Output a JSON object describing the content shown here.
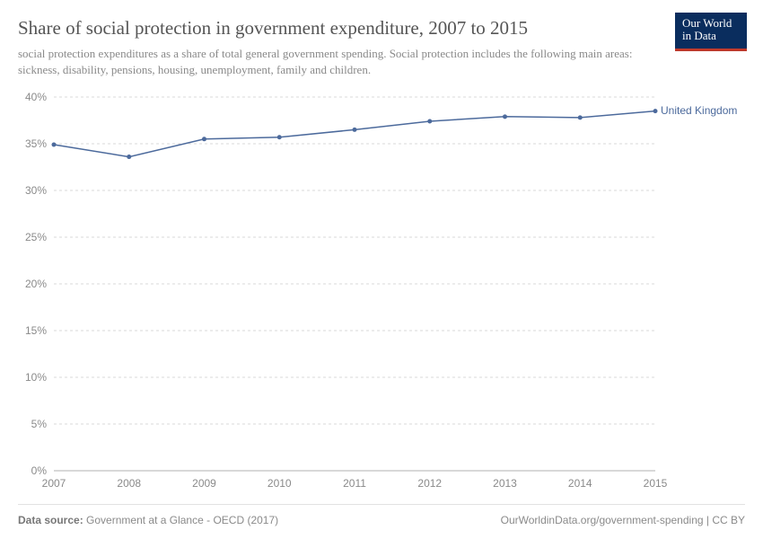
{
  "header": {
    "title": "Share of social protection in government expenditure, 2007 to 2015",
    "subtitle": "social protection expenditures as a share of total general government spending. Social protection includes the following main areas: sickness, disability, pensions, housing, unemployment, family and children.",
    "logo_line1": "Our World",
    "logo_line2": "in Data"
  },
  "chart": {
    "type": "line",
    "background_color": "#ffffff",
    "grid_color": "#d8d8d8",
    "axis_color": "#b0b0b0",
    "tick_label_color": "#8a8a8a",
    "tick_fontsize": 12,
    "y": {
      "min": 0,
      "max": 40,
      "step": 5,
      "suffix": "%"
    },
    "x": {
      "values": [
        2007,
        2008,
        2009,
        2010,
        2011,
        2012,
        2013,
        2014,
        2015
      ]
    },
    "series": [
      {
        "name": "United Kingdom",
        "color": "#4c6a9c",
        "marker": "circle",
        "marker_size": 2.5,
        "line_width": 1.5,
        "x": [
          2007,
          2008,
          2009,
          2010,
          2011,
          2012,
          2013,
          2014,
          2015
        ],
        "y": [
          34.9,
          33.6,
          35.5,
          35.7,
          36.5,
          37.4,
          37.9,
          37.8,
          38.5
        ]
      }
    ]
  },
  "footer": {
    "source_label": "Data source:",
    "source_value": "Government at a Glance - OECD (2017)",
    "attribution": "OurWorldinData.org/government-spending | CC BY"
  }
}
